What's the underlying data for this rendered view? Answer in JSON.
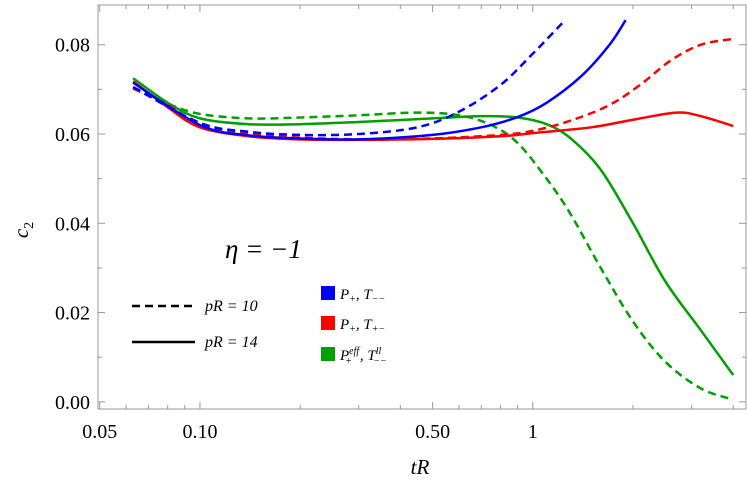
{
  "chart_data": {
    "type": "line",
    "title": "",
    "xlabel": "tR",
    "ylabel": "c2",
    "x_scale": "log",
    "xlim": [
      0.0494,
      4.37
    ],
    "ylim": [
      -0.0016,
      0.0889
    ],
    "x_ticks": [
      {
        "v": 0.05,
        "label": "0.05"
      },
      {
        "v": 0.1,
        "label": "0.10"
      },
      {
        "v": 0.5,
        "label": "0.50"
      },
      {
        "v": 1,
        "label": "1"
      }
    ],
    "y_ticks": [
      {
        "v": 0,
        "label": "0.00"
      },
      {
        "v": 0.02,
        "label": "0.02"
      },
      {
        "v": 0.04,
        "label": "0.04"
      },
      {
        "v": 0.06,
        "label": "0.06"
      },
      {
        "v": 0.08,
        "label": "0.08"
      }
    ],
    "grid": false,
    "annotation": "η = −1",
    "style_legend": [
      {
        "label": "pR = 10",
        "dash": "dashed"
      },
      {
        "label": "pR = 14",
        "dash": "solid"
      }
    ],
    "color_legend": [
      {
        "label": "P+, T−−",
        "color": "#0000ff"
      },
      {
        "label": "P+,  T+−",
        "color": "#ff0000"
      },
      {
        "label": "P+eff, T−−ll",
        "color": "#00a000"
      }
    ],
    "series": [
      {
        "color": "#00a000",
        "dash": "solid",
        "points": [
          [
            0.063,
            0.0725
          ],
          [
            0.08,
            0.067
          ],
          [
            0.1,
            0.0635
          ],
          [
            0.14,
            0.0622
          ],
          [
            0.2,
            0.0622
          ],
          [
            0.3,
            0.0627
          ],
          [
            0.5,
            0.0635
          ],
          [
            0.7,
            0.064
          ],
          [
            0.9,
            0.0637
          ],
          [
            1.1,
            0.0622
          ],
          [
            1.3,
            0.059
          ],
          [
            1.6,
            0.052
          ],
          [
            2.0,
            0.04
          ],
          [
            2.5,
            0.027
          ],
          [
            3.2,
            0.016
          ],
          [
            4.0,
            0.006
          ]
        ]
      },
      {
        "color": "#00a000",
        "dash": "dashed",
        "points": [
          [
            0.063,
            0.0705
          ],
          [
            0.08,
            0.0668
          ],
          [
            0.1,
            0.0645
          ],
          [
            0.14,
            0.0635
          ],
          [
            0.2,
            0.0637
          ],
          [
            0.3,
            0.0642
          ],
          [
            0.45,
            0.0648
          ],
          [
            0.6,
            0.0642
          ],
          [
            0.75,
            0.062
          ],
          [
            0.9,
            0.058
          ],
          [
            1.1,
            0.05
          ],
          [
            1.3,
            0.042
          ],
          [
            1.6,
            0.03
          ],
          [
            2.0,
            0.018
          ],
          [
            2.5,
            0.009
          ],
          [
            3.2,
            0.003
          ],
          [
            4.0,
            0.0005
          ]
        ]
      },
      {
        "color": "#ff0000",
        "dash": "solid",
        "points": [
          [
            0.063,
            0.0718
          ],
          [
            0.08,
            0.066
          ],
          [
            0.1,
            0.0615
          ],
          [
            0.14,
            0.0595
          ],
          [
            0.2,
            0.0588
          ],
          [
            0.3,
            0.0587
          ],
          [
            0.5,
            0.0589
          ],
          [
            0.8,
            0.0595
          ],
          [
            1.0,
            0.0602
          ],
          [
            1.5,
            0.0615
          ],
          [
            2.0,
            0.0632
          ],
          [
            2.7,
            0.0648
          ],
          [
            3.2,
            0.064
          ],
          [
            4.0,
            0.0618
          ]
        ]
      },
      {
        "color": "#ff0000",
        "dash": "dashed",
        "points": [
          [
            0.063,
            0.0702
          ],
          [
            0.08,
            0.0665
          ],
          [
            0.1,
            0.0622
          ],
          [
            0.14,
            0.06
          ],
          [
            0.2,
            0.0592
          ],
          [
            0.3,
            0.0588
          ],
          [
            0.5,
            0.059
          ],
          [
            0.8,
            0.0598
          ],
          [
            1.0,
            0.0607
          ],
          [
            1.3,
            0.063
          ],
          [
            1.7,
            0.0665
          ],
          [
            2.1,
            0.071
          ],
          [
            2.6,
            0.0765
          ],
          [
            3.2,
            0.08
          ],
          [
            4.0,
            0.0813
          ]
        ]
      },
      {
        "color": "#0000ff",
        "dash": "solid",
        "points": [
          [
            0.063,
            0.0715
          ],
          [
            0.1,
            0.062
          ],
          [
            0.14,
            0.0597
          ],
          [
            0.2,
            0.059
          ],
          [
            0.3,
            0.0588
          ],
          [
            0.5,
            0.0598
          ],
          [
            0.7,
            0.0615
          ],
          [
            0.9,
            0.0638
          ],
          [
            1.1,
            0.067
          ],
          [
            1.4,
            0.073
          ],
          [
            1.7,
            0.08
          ],
          [
            1.9,
            0.0855
          ]
        ]
      },
      {
        "color": "#0000ff",
        "dash": "dashed",
        "points": [
          [
            0.063,
            0.0705
          ],
          [
            0.1,
            0.0625
          ],
          [
            0.14,
            0.0605
          ],
          [
            0.2,
            0.0598
          ],
          [
            0.3,
            0.06
          ],
          [
            0.45,
            0.0615
          ],
          [
            0.6,
            0.065
          ],
          [
            0.8,
            0.071
          ],
          [
            1.0,
            0.078
          ],
          [
            1.25,
            0.0855
          ]
        ]
      }
    ]
  }
}
